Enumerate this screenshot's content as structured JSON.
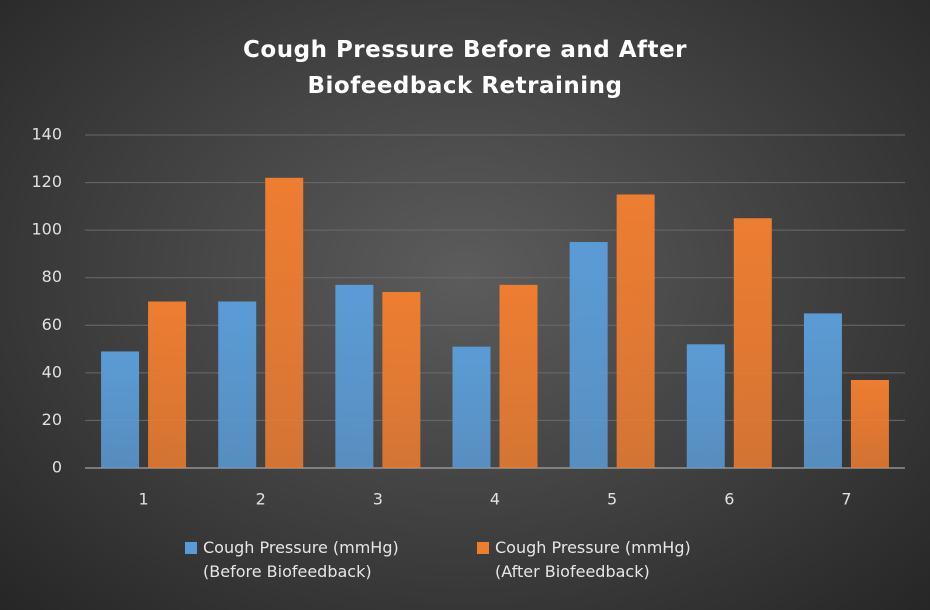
{
  "chart_data": {
    "type": "bar",
    "title": "Cough Pressure Before and After Biofeedback Retraining",
    "categories": [
      "1",
      "2",
      "3",
      "4",
      "5",
      "6",
      "7"
    ],
    "series": [
      {
        "name": "Cough Pressure (mmHg) (Before Biofeedback)",
        "color": "#5b9bd5",
        "values": [
          49,
          70,
          77,
          51,
          95,
          52,
          65
        ]
      },
      {
        "name": "Cough Pressure (mmHg) (After Biofeedback)",
        "color": "#ed7d31",
        "values": [
          70,
          122,
          74,
          77,
          115,
          105,
          37
        ]
      }
    ],
    "ylim": [
      0,
      140
    ],
    "yticks": [
      0,
      20,
      40,
      60,
      80,
      100,
      120,
      140
    ],
    "grid": true,
    "legend": "bottom"
  }
}
